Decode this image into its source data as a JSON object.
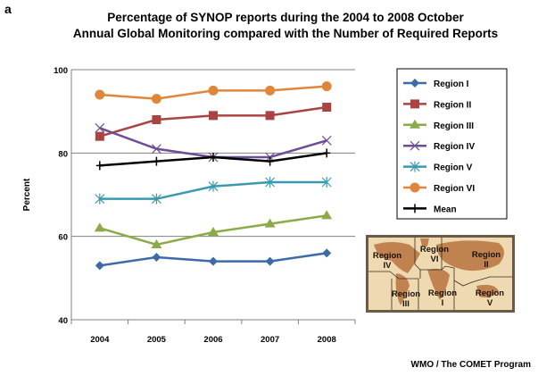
{
  "panel_label": "a",
  "source": "WMO / The COMET Program",
  "chart_data": {
    "type": "line",
    "title": "Percentage of SYNOP reports during the 2004 to 2008 October",
    "subtitle": "Annual Global Monitoring compared with the Number of Required Reports",
    "xlabel": "",
    "ylabel": "Percent",
    "categories": [
      "2004",
      "2005",
      "2006",
      "2007",
      "2008"
    ],
    "ylim": [
      40,
      100
    ],
    "yticks": [
      40,
      60,
      80,
      100
    ],
    "grid": "horizontal",
    "legend_position": "right",
    "series": [
      {
        "name": "Region I",
        "color": "#3d6aa8",
        "marker": "diamond",
        "values": [
          53,
          55,
          54,
          54,
          56
        ]
      },
      {
        "name": "Region II",
        "color": "#a94442",
        "marker": "square",
        "values": [
          84,
          88,
          89,
          89,
          91
        ]
      },
      {
        "name": "Region III",
        "color": "#8aab48",
        "marker": "triangle",
        "values": [
          62,
          58,
          61,
          63,
          65
        ]
      },
      {
        "name": "Region IV",
        "color": "#6e4d97",
        "marker": "x",
        "values": [
          86,
          81,
          79,
          79,
          83
        ]
      },
      {
        "name": "Region V",
        "color": "#3a9aad",
        "marker": "asterisk",
        "values": [
          69,
          69,
          72,
          73,
          73
        ]
      },
      {
        "name": "Region VI",
        "color": "#e0863a",
        "marker": "circle",
        "values": [
          94,
          93,
          95,
          95,
          96
        ]
      },
      {
        "name": "Mean",
        "color": "#000000",
        "marker": "plus",
        "values": [
          77,
          78,
          79,
          78,
          80
        ]
      }
    ]
  },
  "map": {
    "labels": [
      {
        "line1": "Region",
        "line2": "IV"
      },
      {
        "line1": "Region",
        "line2": "VI"
      },
      {
        "line1": "Region",
        "line2": "II"
      },
      {
        "line1": "Region",
        "line2": "III"
      },
      {
        "line1": "Region",
        "line2": "I"
      },
      {
        "line1": "Region",
        "line2": "V"
      }
    ]
  }
}
